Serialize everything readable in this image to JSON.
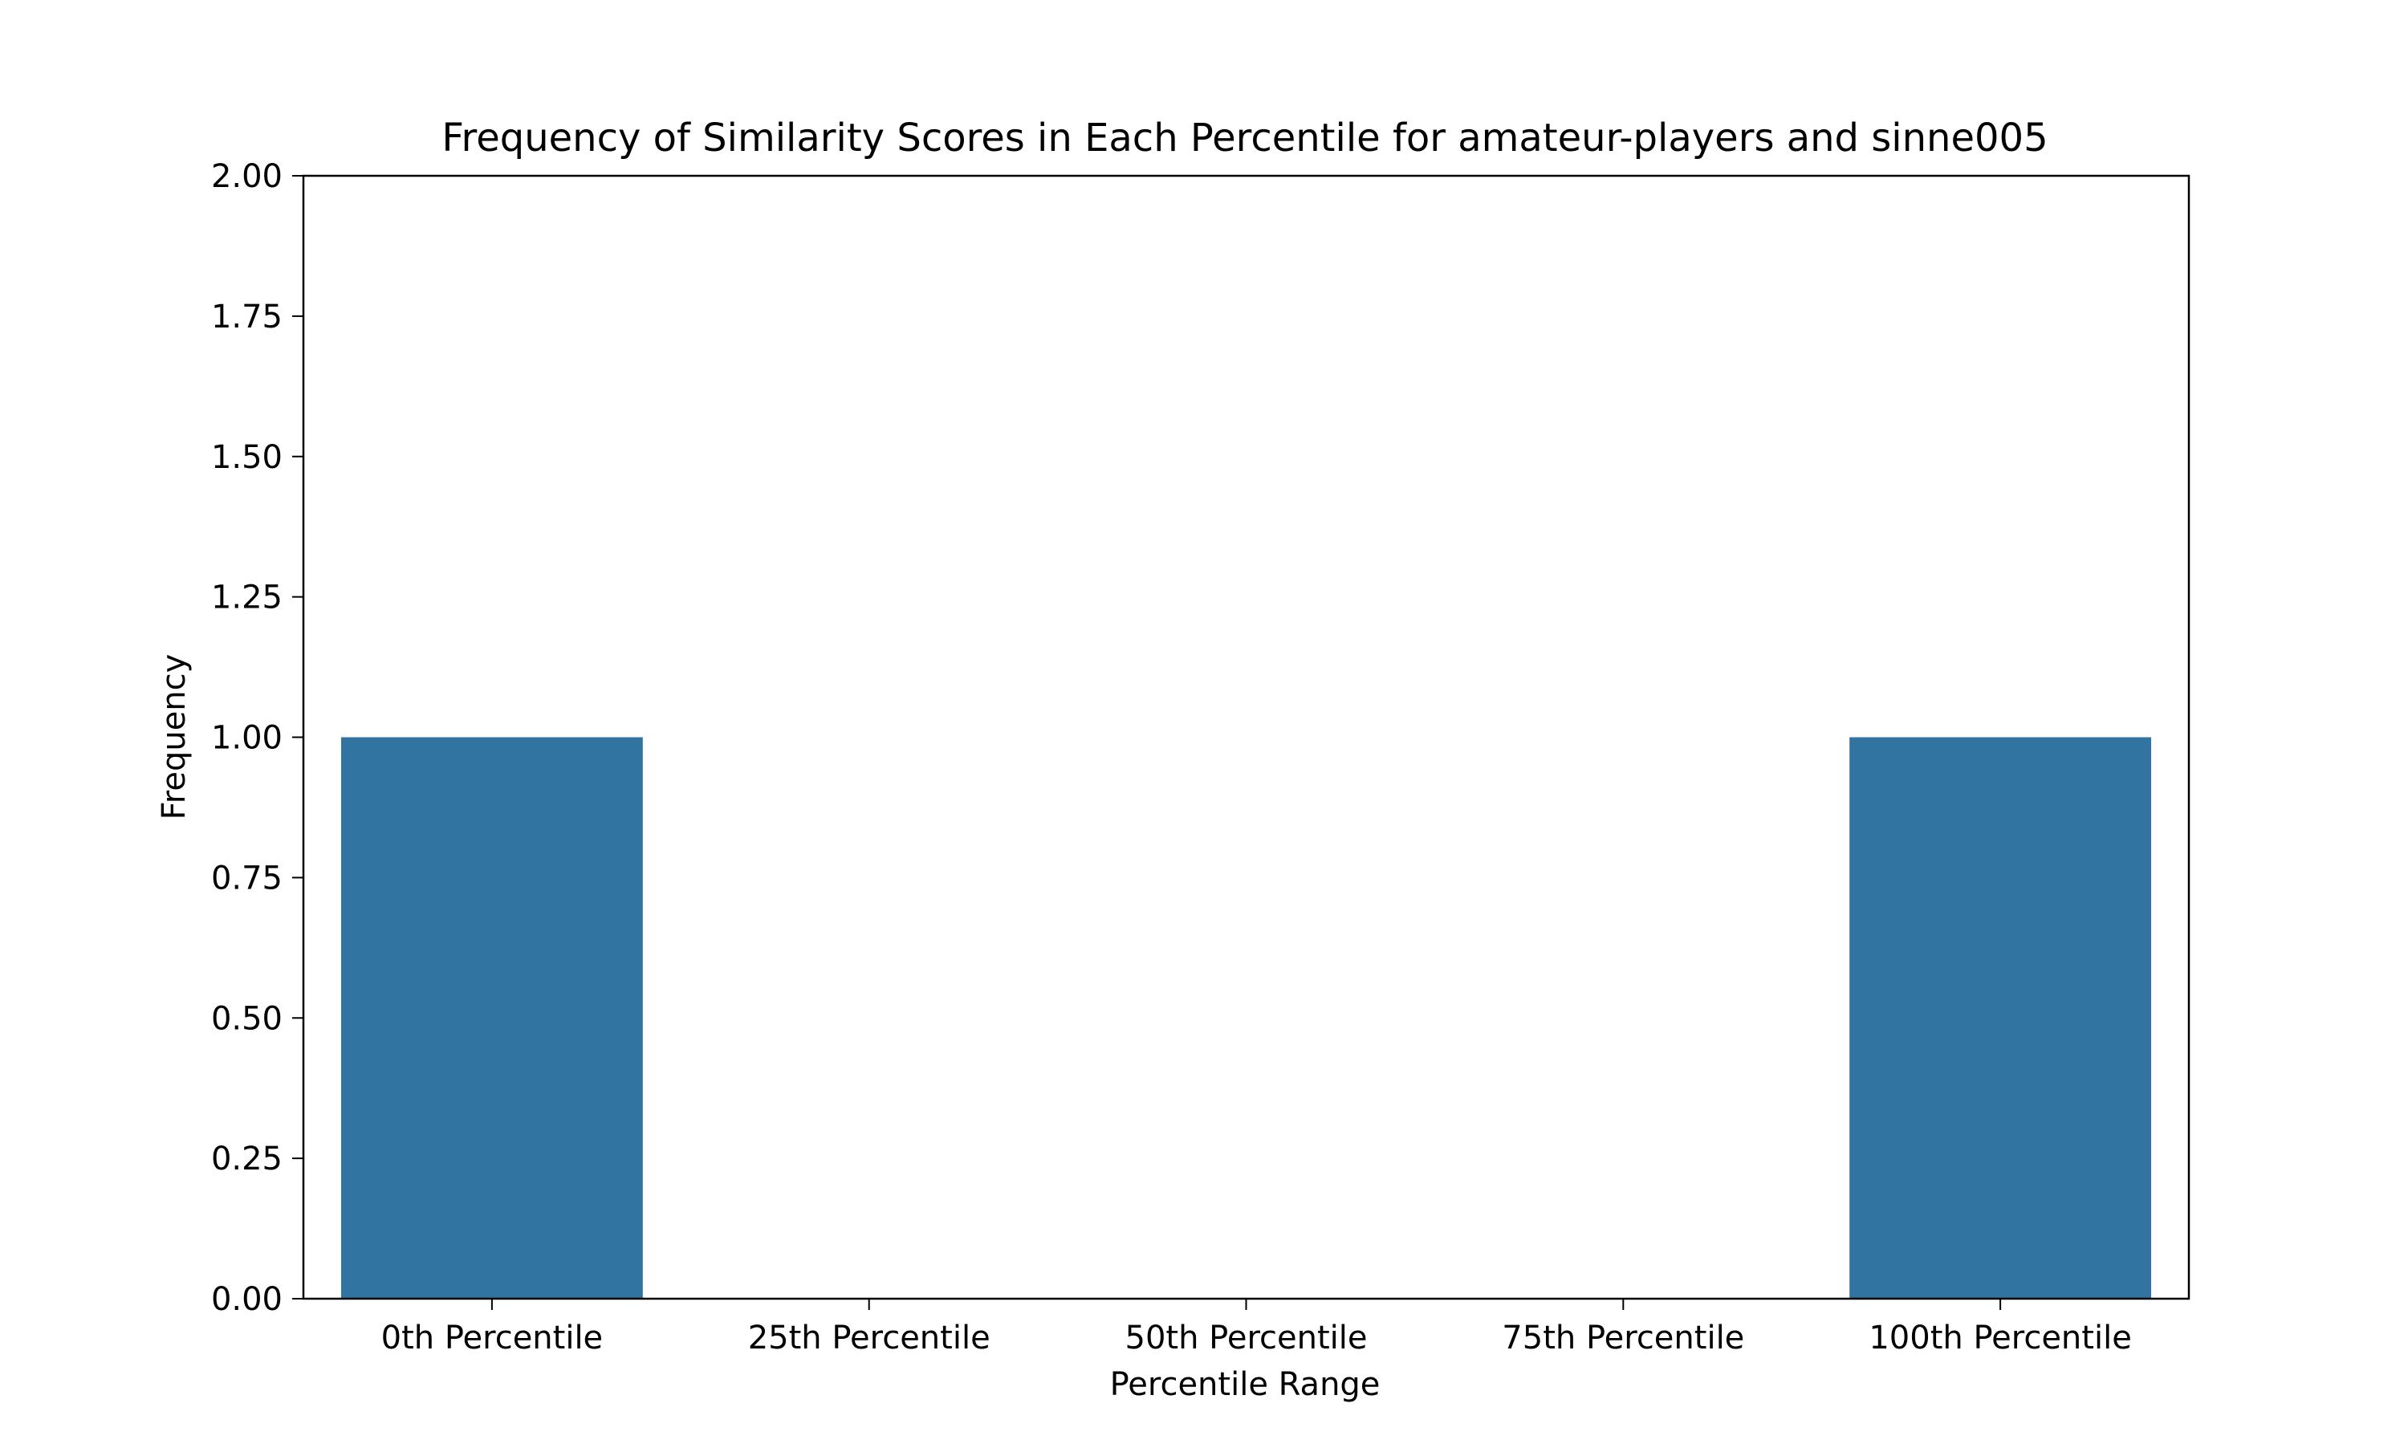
{
  "chart_data": {
    "type": "bar",
    "title": "Frequency of Similarity Scores in Each Percentile for amateur-players and sinne005",
    "xlabel": "Percentile Range",
    "ylabel": "Frequency",
    "categories": [
      "0th Percentile",
      "25th Percentile",
      "50th Percentile",
      "75th Percentile",
      "100th Percentile"
    ],
    "values": [
      1,
      0,
      0,
      0,
      1
    ],
    "ylim": [
      0,
      2
    ],
    "yticks": [
      "0.00",
      "0.25",
      "0.50",
      "0.75",
      "1.00",
      "1.25",
      "1.50",
      "1.75",
      "2.00"
    ],
    "grid": false,
    "bar_color": "#3274a1"
  }
}
